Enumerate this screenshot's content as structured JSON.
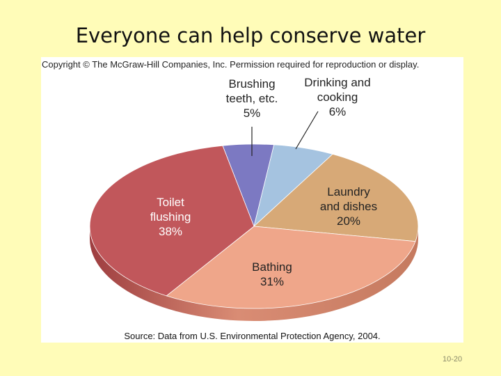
{
  "slide": {
    "title": "Everyone can help conserve water",
    "page_number": "10-20"
  },
  "figure": {
    "copyright": "Copyright © The McGraw-Hill Companies, Inc. Permission required for reproduction or display.",
    "source": "Source: Data from U.S. Environmental Protection Agency, 2004."
  },
  "chart_data": {
    "type": "pie",
    "title": "",
    "slices": [
      {
        "label_lines": [
          "Brushing",
          "teeth, etc."
        ],
        "percent_text": "5%",
        "value": 5,
        "color": "#7c79c2"
      },
      {
        "label_lines": [
          "Drinking and",
          "cooking"
        ],
        "percent_text": "6%",
        "value": 6,
        "color": "#a5c3e0"
      },
      {
        "label_lines": [
          "Laundry",
          "and dishes"
        ],
        "percent_text": "20%",
        "value": 20,
        "color": "#d7a977"
      },
      {
        "label_lines": [
          "Bathing"
        ],
        "percent_text": "31%",
        "value": 31,
        "color": "#efa68a"
      },
      {
        "label_lines": [
          "Toilet",
          "flushing"
        ],
        "percent_text": "38%",
        "value": 38,
        "color": "#c1575b"
      }
    ]
  }
}
